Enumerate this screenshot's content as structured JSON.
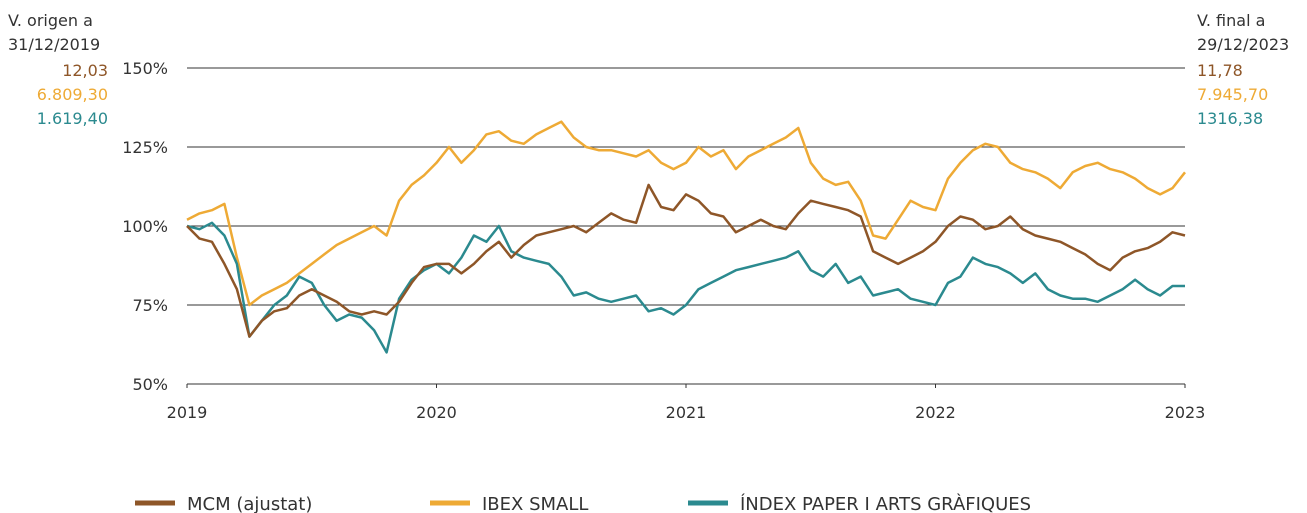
{
  "chart_data": {
    "type": "line",
    "left_header": [
      "V. origen a",
      "31/12/2019"
    ],
    "right_header": [
      "V. final a",
      "29/12/2023"
    ],
    "x": [
      2019,
      2019.05,
      2019.1,
      2019.15,
      2019.2,
      2019.25,
      2019.3,
      2019.35,
      2019.4,
      2019.45,
      2019.5,
      2019.55,
      2019.6,
      2019.65,
      2019.7,
      2019.75,
      2019.8,
      2019.85,
      2019.9,
      2019.95,
      2020,
      2020.05,
      2020.1,
      2020.15,
      2020.2,
      2020.25,
      2020.3,
      2020.35,
      2020.4,
      2020.45,
      2020.5,
      2020.55,
      2020.6,
      2020.65,
      2020.7,
      2020.75,
      2020.8,
      2020.85,
      2020.9,
      2020.95,
      2021,
      2021.05,
      2021.1,
      2021.15,
      2021.2,
      2021.25,
      2021.3,
      2021.35,
      2021.4,
      2021.45,
      2021.5,
      2021.55,
      2021.6,
      2021.65,
      2021.7,
      2021.75,
      2021.8,
      2021.85,
      2021.9,
      2021.95,
      2022,
      2022.05,
      2022.1,
      2022.15,
      2022.2,
      2022.25,
      2022.3,
      2022.35,
      2022.4,
      2022.45,
      2022.5,
      2022.55,
      2022.6,
      2022.65,
      2022.7,
      2022.75,
      2022.8,
      2022.85,
      2022.9,
      2022.95,
      2023
    ],
    "series": [
      {
        "name": "MCM (ajustat)",
        "color": "#8e5628",
        "start_value": "12,03",
        "end_value": "11,78",
        "values": [
          100,
          96,
          95,
          88,
          80,
          65,
          70,
          73,
          74,
          78,
          80,
          78,
          76,
          73,
          72,
          73,
          72,
          76,
          82,
          87,
          88,
          88,
          85,
          88,
          92,
          95,
          90,
          94,
          97,
          98,
          99,
          100,
          98,
          101,
          104,
          102,
          101,
          113,
          106,
          105,
          110,
          108,
          104,
          103,
          98,
          100,
          102,
          100,
          99,
          104,
          108,
          107,
          106,
          105,
          103,
          92,
          90,
          88,
          90,
          92,
          95,
          100,
          103,
          102,
          99,
          100,
          103,
          99,
          97,
          96,
          95,
          93,
          91,
          88,
          86,
          90,
          92,
          93,
          95,
          98,
          97
        ]
      },
      {
        "name": "IBEX SMALL",
        "color": "#eeaa35",
        "start_value": "6.809,30",
        "end_value": "7.945,70",
        "values": [
          102,
          104,
          105,
          107,
          90,
          75,
          78,
          80,
          82,
          85,
          88,
          91,
          94,
          96,
          98,
          100,
          97,
          108,
          113,
          116,
          120,
          125,
          120,
          124,
          129,
          130,
          127,
          126,
          129,
          131,
          133,
          128,
          125,
          124,
          124,
          123,
          122,
          124,
          120,
          118,
          120,
          125,
          122,
          124,
          118,
          122,
          124,
          126,
          128,
          131,
          120,
          115,
          113,
          114,
          108,
          97,
          96,
          102,
          108,
          106,
          105,
          115,
          120,
          124,
          126,
          125,
          120,
          118,
          117,
          115,
          112,
          117,
          119,
          120,
          118,
          117,
          115,
          112,
          110,
          112,
          117
        ]
      },
      {
        "name": "ÍNDEX PAPER I ARTS GRÀFIQUES",
        "color": "#2b8a8f",
        "start_value": "1.619,40",
        "end_value": "1316,38",
        "values": [
          100,
          99,
          101,
          97,
          88,
          65,
          70,
          75,
          78,
          84,
          82,
          75,
          70,
          72,
          71,
          67,
          60,
          77,
          83,
          86,
          88,
          85,
          90,
          97,
          95,
          100,
          92,
          90,
          89,
          88,
          84,
          78,
          79,
          77,
          76,
          77,
          78,
          73,
          74,
          72,
          75,
          80,
          82,
          84,
          86,
          87,
          88,
          89,
          90,
          92,
          86,
          84,
          88,
          82,
          84,
          78,
          79,
          80,
          77,
          76,
          75,
          82,
          84,
          90,
          88,
          87,
          85,
          82,
          85,
          80,
          78,
          77,
          77,
          76,
          78,
          80,
          83,
          80,
          78,
          81,
          81
        ]
      }
    ],
    "xlim": [
      2019,
      2023
    ],
    "xticks": [
      2019,
      2020,
      2021,
      2022,
      2023
    ],
    "ylim": [
      50,
      150
    ],
    "yticks": [
      {
        "value": 50,
        "label": "50%"
      },
      {
        "value": 75,
        "label": "75%"
      },
      {
        "value": 100,
        "label": "100%"
      },
      {
        "value": 125,
        "label": "125%"
      },
      {
        "value": 150,
        "label": "150%"
      }
    ],
    "grid": true
  }
}
